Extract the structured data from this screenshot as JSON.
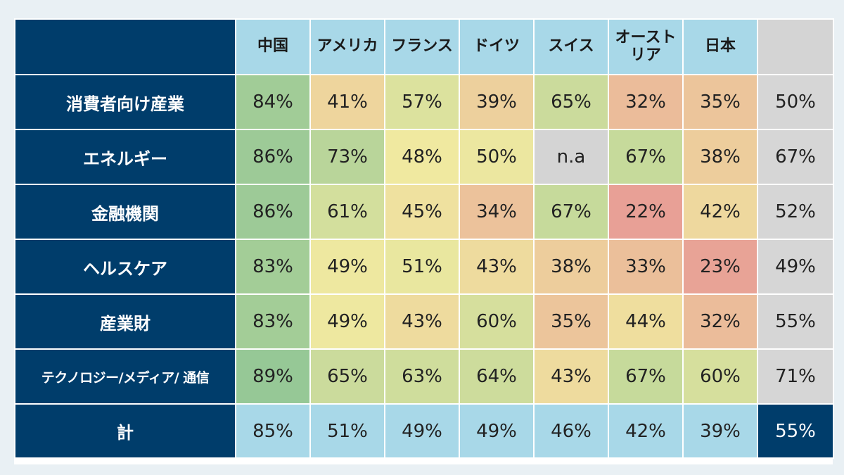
{
  "chart_data": {
    "type": "heatmap",
    "columns": [
      "中国",
      "アメリカ",
      "フランス",
      "ドイツ",
      "スイス",
      "オースト\nリア",
      "日本",
      ""
    ],
    "rows": [
      {
        "label": "消費者向け産業",
        "values": [
          "84%",
          "41%",
          "57%",
          "39%",
          "65%",
          "32%",
          "35%"
        ],
        "avg": "50%"
      },
      {
        "label": "エネルギー",
        "values": [
          "86%",
          "73%",
          "48%",
          "50%",
          "n.a",
          "67%",
          "38%"
        ],
        "avg": "67%"
      },
      {
        "label": "金融機関",
        "values": [
          "86%",
          "61%",
          "45%",
          "34%",
          "67%",
          "22%",
          "42%"
        ],
        "avg": "52%"
      },
      {
        "label": "ヘルスケア",
        "values": [
          "83%",
          "49%",
          "51%",
          "43%",
          "38%",
          "33%",
          "23%"
        ],
        "avg": "49%"
      },
      {
        "label": "産業財",
        "values": [
          "83%",
          "49%",
          "43%",
          "60%",
          "35%",
          "44%",
          "32%"
        ],
        "avg": "55%"
      },
      {
        "label": "テクノロジー/メディア/ 通信",
        "values": [
          "89%",
          "65%",
          "63%",
          "64%",
          "43%",
          "67%",
          "60%"
        ],
        "avg": "71%"
      }
    ],
    "total": {
      "label": "計",
      "values": [
        "85%",
        "51%",
        "49%",
        "49%",
        "46%",
        "42%",
        "39%"
      ],
      "grand": "55%"
    },
    "colors": {
      "dark_navy": "#003d6b",
      "header_cyan": "#a8d8e8",
      "average_grey": "#d6d6d6",
      "na_grey": "#d4d4d4",
      "scale_low_red": "#e8a096",
      "scale_mid_yellow": "#f0e9a0",
      "scale_high_green": "#96c896"
    }
  }
}
